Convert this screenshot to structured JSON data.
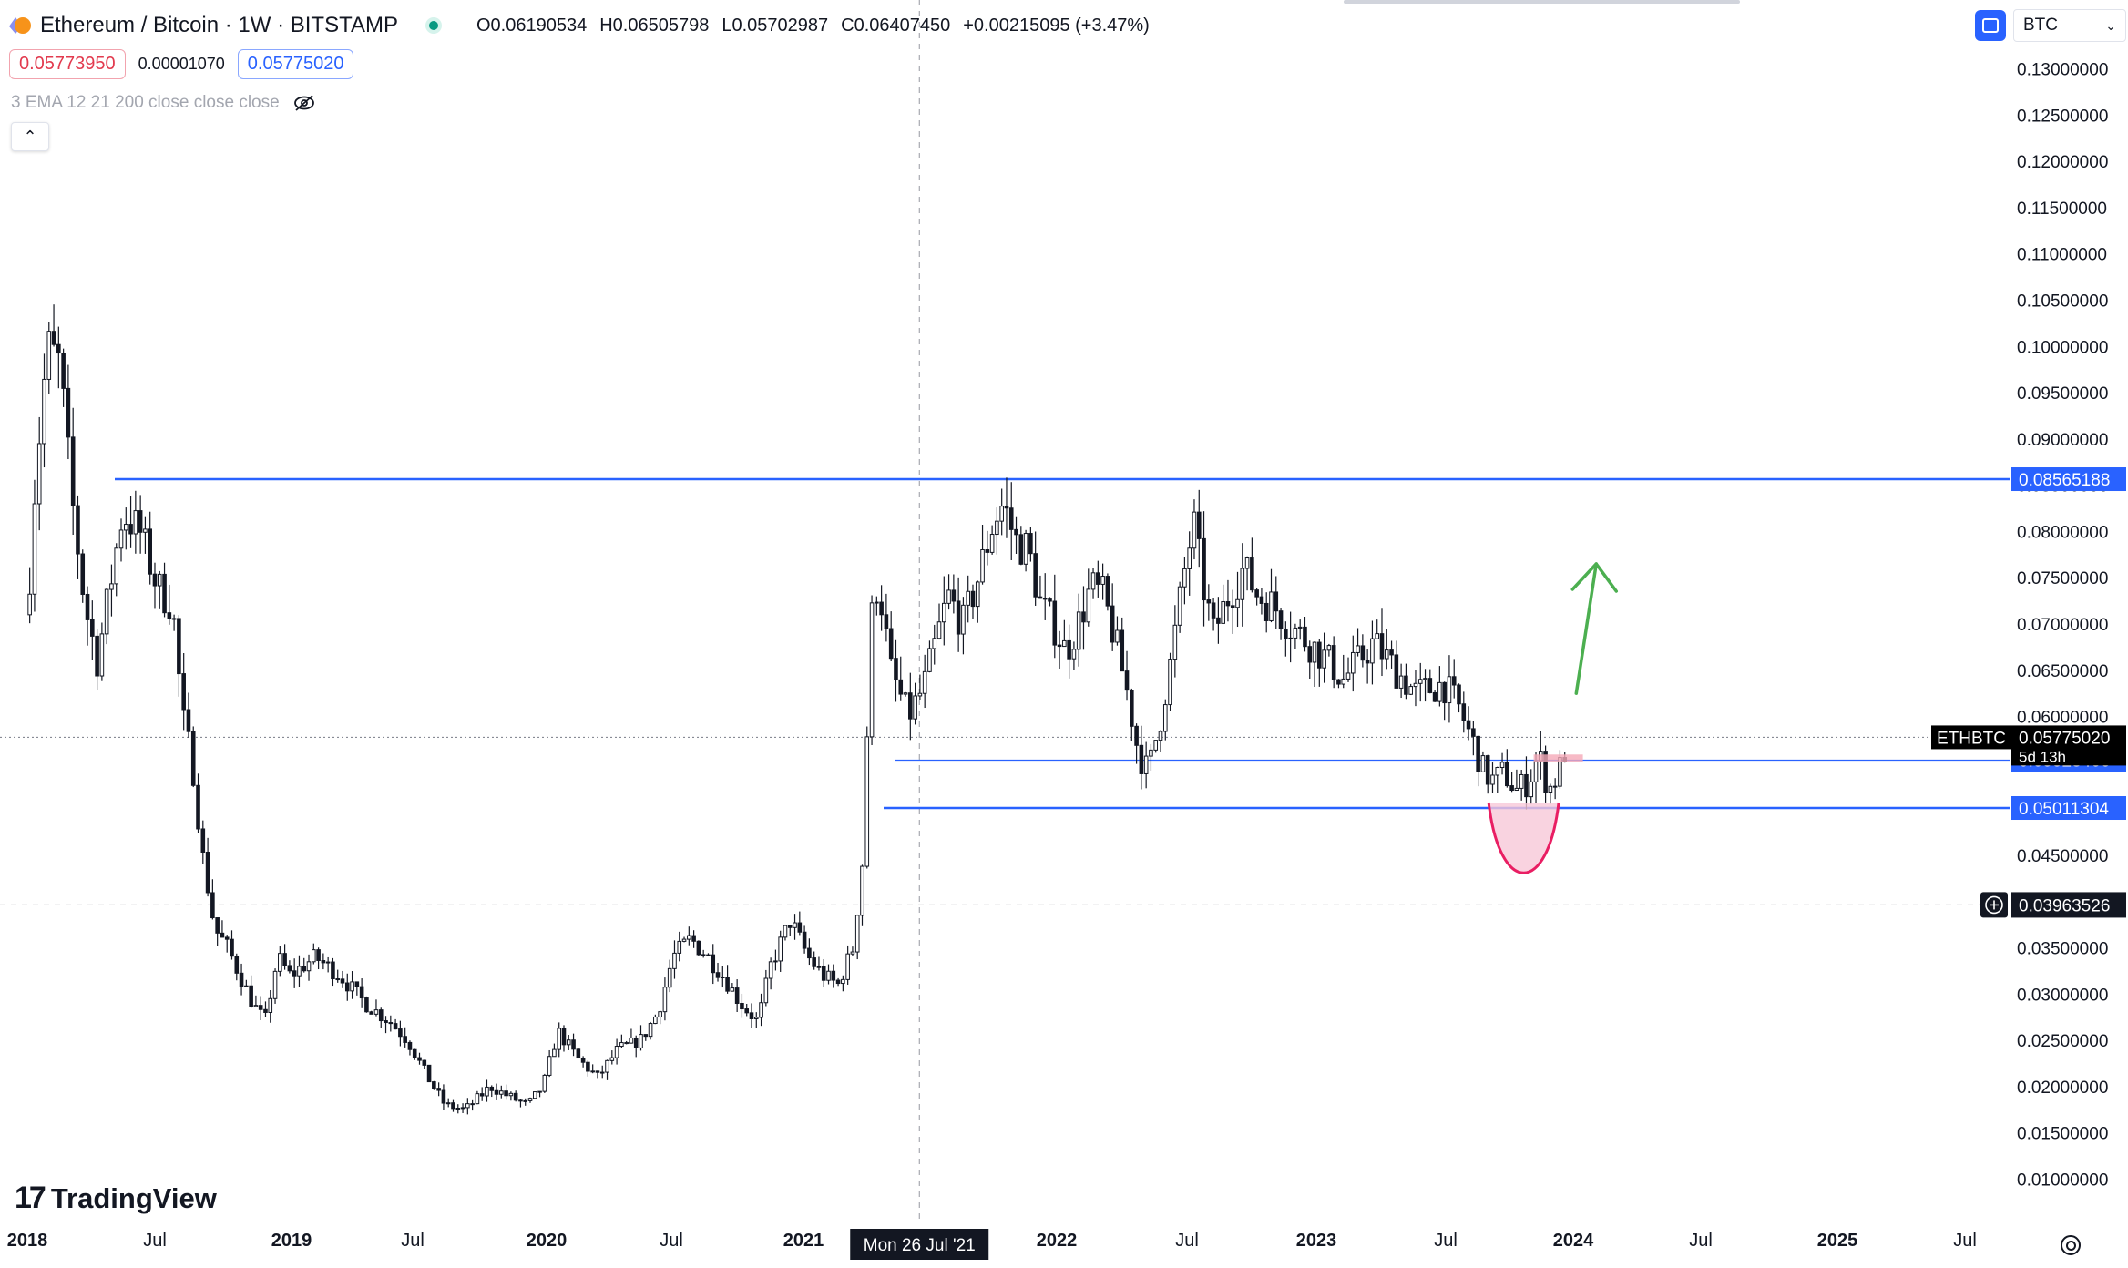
{
  "header": {
    "title": "Ethereum / Bitcoin · 1W · BITSTAMP",
    "open": "O0.06190534",
    "high": "H0.06505798",
    "low": "L0.05702987",
    "close": "C0.06407450",
    "change": "+0.00215095 (+3.47%)",
    "bid": "0.05773950",
    "spread": "0.00001070",
    "ask": "0.05775020",
    "indicator": "3 EMA 12 21 200 close close close",
    "collapse_glyph": "⌃"
  },
  "toolbar": {
    "currency": "BTC",
    "currency_chevron": "⌄"
  },
  "branding": {
    "logo_mark": "17",
    "logo_text": "TradingView"
  },
  "icons": {
    "coin": "eth-btc-pair-icon",
    "live": "market-open-icon",
    "eye": "eye-crossed-icon",
    "currency": "currency-toggle-icon",
    "crosshair_add": "plus-circle-icon",
    "settings": "gear-icon"
  },
  "colors": {
    "level_line": "#2962ff",
    "tag_bg": "#2962ff",
    "price_tag_bg": "#000000",
    "arrow": "#4caf50",
    "cup_fill": "#f8c8d8",
    "cup_stroke": "#e91e63",
    "candle": "#131722",
    "crosshair": "#9598a1"
  },
  "chart_data": {
    "type": "candlestick",
    "symbol": "ETHBTC",
    "interval": "1W",
    "exchange": "BITSTAMP",
    "y_axis_ticks": [
      "0.13000000",
      "0.12500000",
      "0.12000000",
      "0.11500000",
      "0.11000000",
      "0.10500000",
      "0.10000000",
      "0.09500000",
      "0.09000000",
      "0.08500000",
      "0.08000000",
      "0.07500000",
      "0.07000000",
      "0.06500000",
      "0.06000000",
      "0.05500000",
      "0.05000000",
      "0.04500000",
      "0.04000000",
      "0.03500000",
      "0.03000000",
      "0.02500000",
      "0.02000000",
      "0.01500000",
      "0.01000000"
    ],
    "y_range": [
      0.0065,
      0.1335
    ],
    "x_axis_labels": [
      {
        "text": "2018",
        "bold": true
      },
      {
        "text": "Jul",
        "bold": false
      },
      {
        "text": "2019",
        "bold": true
      },
      {
        "text": "Jul",
        "bold": false
      },
      {
        "text": "2020",
        "bold": true
      },
      {
        "text": "Jul",
        "bold": false
      },
      {
        "text": "2021",
        "bold": true
      },
      {
        "text": "2022",
        "bold": true
      },
      {
        "text": "Jul",
        "bold": false
      },
      {
        "text": "2023",
        "bold": true
      },
      {
        "text": "Jul",
        "bold": false
      },
      {
        "text": "2024",
        "bold": true
      },
      {
        "text": "Jul",
        "bold": false
      },
      {
        "text": "2025",
        "bold": true
      },
      {
        "text": "Jul",
        "bold": false
      }
    ],
    "x_range": [
      2018.0,
      2025.9
    ],
    "horizontal_levels": [
      {
        "price": 0.08565188,
        "label": "0.08565188",
        "weight": "bold"
      },
      {
        "price": 0.05528466,
        "label": "0.05528466",
        "weight": "thin"
      },
      {
        "price": 0.05011304,
        "label": "0.05011304",
        "weight": "bold"
      }
    ],
    "current_price": {
      "price": 0.0577502,
      "label": "0.05775020",
      "symbol": "ETHBTC",
      "countdown": "5d 13h"
    },
    "crosshair": {
      "price": 0.03963526,
      "label": "0.03963526",
      "date": 2021.565,
      "date_label": "Mon 26 Jul '21"
    },
    "arrow": {
      "from": [
        2024.19,
        0.0625
      ],
      "to": [
        2024.27,
        0.0765
      ]
    },
    "cup": {
      "x_start": 2023.84,
      "x_end": 2024.12,
      "top": 0.0507,
      "bottom": 0.0445
    },
    "price_path": [
      [
        2018.0,
        0.071
      ],
      [
        2018.03,
        0.085
      ],
      [
        2018.08,
        0.1
      ],
      [
        2018.13,
        0.098
      ],
      [
        2018.18,
        0.083
      ],
      [
        2018.23,
        0.072
      ],
      [
        2018.28,
        0.066
      ],
      [
        2018.33,
        0.074
      ],
      [
        2018.38,
        0.082
      ],
      [
        2018.45,
        0.08
      ],
      [
        2018.52,
        0.074
      ],
      [
        2018.58,
        0.072
      ],
      [
        2018.62,
        0.06
      ],
      [
        2018.66,
        0.055
      ],
      [
        2018.7,
        0.045
      ],
      [
        2018.75,
        0.037
      ],
      [
        2018.8,
        0.035
      ],
      [
        2018.85,
        0.032
      ],
      [
        2018.9,
        0.029
      ],
      [
        2018.95,
        0.027
      ],
      [
        2019.0,
        0.034
      ],
      [
        2019.05,
        0.032
      ],
      [
        2019.15,
        0.034
      ],
      [
        2019.25,
        0.032
      ],
      [
        2019.35,
        0.029
      ],
      [
        2019.45,
        0.027
      ],
      [
        2019.52,
        0.025
      ],
      [
        2019.6,
        0.021
      ],
      [
        2019.67,
        0.018
      ],
      [
        2019.75,
        0.0175
      ],
      [
        2019.85,
        0.02
      ],
      [
        2019.92,
        0.019
      ],
      [
        2020.0,
        0.018
      ],
      [
        2020.06,
        0.02
      ],
      [
        2020.12,
        0.026
      ],
      [
        2020.2,
        0.023
      ],
      [
        2020.28,
        0.021
      ],
      [
        2020.36,
        0.024
      ],
      [
        2020.45,
        0.025
      ],
      [
        2020.52,
        0.028
      ],
      [
        2020.58,
        0.034
      ],
      [
        2020.65,
        0.036
      ],
      [
        2020.72,
        0.034
      ],
      [
        2020.78,
        0.032
      ],
      [
        2020.85,
        0.029
      ],
      [
        2020.92,
        0.027
      ],
      [
        2020.97,
        0.033
      ],
      [
        2021.05,
        0.038
      ],
      [
        2021.12,
        0.034
      ],
      [
        2021.18,
        0.032
      ],
      [
        2021.24,
        0.031
      ],
      [
        2021.3,
        0.035
      ],
      [
        2021.34,
        0.045
      ],
      [
        2021.37,
        0.07
      ],
      [
        2021.4,
        0.075
      ],
      [
        2021.45,
        0.065
      ],
      [
        2021.52,
        0.06
      ],
      [
        2021.58,
        0.063
      ],
      [
        2021.63,
        0.068
      ],
      [
        2021.68,
        0.073
      ],
      [
        2021.74,
        0.07
      ],
      [
        2021.8,
        0.075
      ],
      [
        2021.86,
        0.081
      ],
      [
        2021.9,
        0.083
      ],
      [
        2021.95,
        0.079
      ],
      [
        2022.0,
        0.078
      ],
      [
        2022.05,
        0.072
      ],
      [
        2022.1,
        0.07
      ],
      [
        2022.15,
        0.067
      ],
      [
        2022.2,
        0.07
      ],
      [
        2022.25,
        0.074
      ],
      [
        2022.3,
        0.073
      ],
      [
        2022.35,
        0.068
      ],
      [
        2022.4,
        0.062
      ],
      [
        2022.44,
        0.056
      ],
      [
        2022.48,
        0.054
      ],
      [
        2022.53,
        0.06
      ],
      [
        2022.57,
        0.066
      ],
      [
        2022.62,
        0.075
      ],
      [
        2022.66,
        0.081
      ],
      [
        2022.7,
        0.074
      ],
      [
        2022.74,
        0.069
      ],
      [
        2022.8,
        0.073
      ],
      [
        2022.86,
        0.076
      ],
      [
        2022.92,
        0.073
      ],
      [
        2022.98,
        0.072
      ],
      [
        2023.04,
        0.07
      ],
      [
        2023.12,
        0.068
      ],
      [
        2023.2,
        0.066
      ],
      [
        2023.26,
        0.064
      ],
      [
        2023.32,
        0.066
      ],
      [
        2023.38,
        0.068
      ],
      [
        2023.44,
        0.066
      ],
      [
        2023.5,
        0.064
      ],
      [
        2023.55,
        0.0625
      ],
      [
        2023.6,
        0.063
      ],
      [
        2023.66,
        0.0635
      ],
      [
        2023.72,
        0.061
      ],
      [
        2023.78,
        0.057
      ],
      [
        2023.82,
        0.054
      ],
      [
        2023.86,
        0.053
      ],
      [
        2023.9,
        0.054
      ],
      [
        2023.95,
        0.052
      ],
      [
        2024.0,
        0.053
      ],
      [
        2024.04,
        0.056
      ],
      [
        2024.08,
        0.052
      ],
      [
        2024.12,
        0.054
      ],
      [
        2024.16,
        0.0577
      ]
    ]
  }
}
